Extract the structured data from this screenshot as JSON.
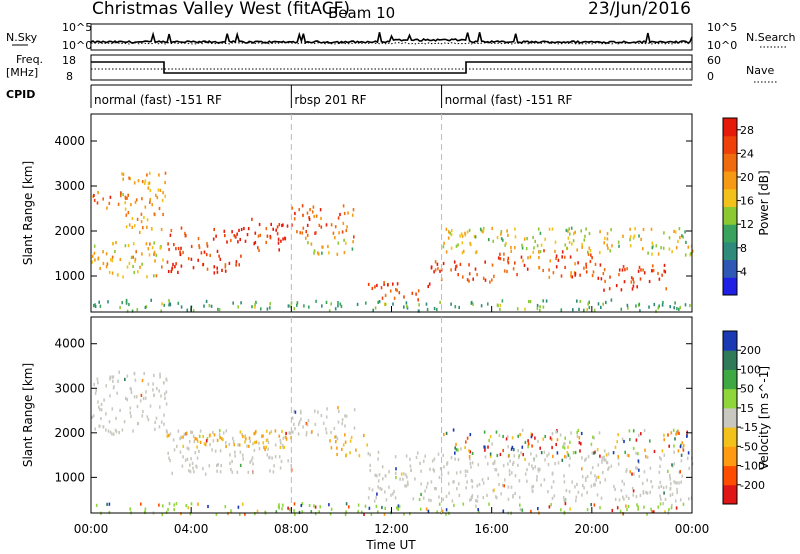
{
  "header": {
    "title": "Christmas Valley West (fitACF)",
    "beam": "Beam 10",
    "date": "23/Jun/2016"
  },
  "sky_panel": {
    "left_label": "N.Sky",
    "right_label": "N.Search",
    "left_ticks": [
      "10^5",
      "10^0"
    ],
    "right_ticks": [
      "10^5",
      "10^0"
    ]
  },
  "freq_panel": {
    "left_label_line1": "Freq.",
    "left_label_line2": "[MHz]",
    "right_label": "Nave",
    "left_ticks": [
      "18",
      "8"
    ],
    "right_ticks": [
      "60",
      "0"
    ]
  },
  "cpid_panel": {
    "label": "CPID",
    "segments": [
      {
        "start": 0,
        "end": 8,
        "label": "normal (fast) -151 RF"
      },
      {
        "start": 8,
        "end": 14,
        "label": "rbsp 201 RF"
      },
      {
        "start": 14,
        "end": 24,
        "label": "normal (fast) -151 RF"
      }
    ]
  },
  "colors": {
    "power": [
      "#1f1fe6",
      "#2f57b5",
      "#2e8a7a",
      "#39a35e",
      "#8cc832",
      "#f2c21a",
      "#f59a12",
      "#f06b0d",
      "#ee4008",
      "#e61a08"
    ],
    "velocity": [
      "#e01515",
      "#ff4d00",
      "#ff9a12",
      "#f2c21a",
      "#c8c8c0",
      "#8fd63a",
      "#3ea842",
      "#2f7a58",
      "#1a3ab3"
    ],
    "ground_scatter": "#c8c8c0"
  },
  "chart_data": [
    {
      "type": "heatmap",
      "title": "Power",
      "xlabel": "Time UT",
      "ylabel": "Slant Range [km]",
      "x_ticks": [
        "00:00",
        "04:00",
        "08:00",
        "12:00",
        "16:00",
        "20:00",
        "00:00"
      ],
      "xlim_hours": [
        0,
        24
      ],
      "y_ticks": [
        1000,
        2000,
        3000,
        4000
      ],
      "ylim": [
        200,
        4600
      ],
      "colorbar_label": "Power [dB]",
      "colorbar_ticks": [
        4,
        8,
        12,
        16,
        20,
        24,
        28
      ],
      "colorbar_range": [
        0,
        30
      ],
      "scatter_regions": [
        {
          "t0": 0.0,
          "t1": 1.2,
          "r0": 2500,
          "r1": 2900,
          "level": 0.8
        },
        {
          "t0": 1.2,
          "t1": 3.0,
          "r0": 2000,
          "r1": 3400,
          "level": 0.65
        },
        {
          "t0": 3.0,
          "t1": 6.0,
          "r0": 1100,
          "r1": 2100,
          "level": 0.95
        },
        {
          "t0": 6.0,
          "t1": 8.0,
          "r0": 1600,
          "r1": 2300,
          "level": 0.92
        },
        {
          "t0": 8.0,
          "t1": 10.5,
          "r0": 1900,
          "r1": 2600,
          "level": 0.85
        },
        {
          "t0": 8.5,
          "t1": 10.5,
          "r0": 1500,
          "r1": 1900,
          "level": 0.55
        },
        {
          "t0": 0.0,
          "t1": 3.0,
          "r0": 1000,
          "r1": 1800,
          "level": 0.6
        },
        {
          "t0": 11.0,
          "t1": 13.5,
          "r0": 500,
          "r1": 900,
          "level": 0.9
        },
        {
          "t0": 13.5,
          "t1": 16.0,
          "r0": 900,
          "r1": 1400,
          "level": 0.9
        },
        {
          "t0": 16.0,
          "t1": 20.0,
          "r0": 1000,
          "r1": 1600,
          "level": 0.85
        },
        {
          "t0": 20.0,
          "t1": 23.0,
          "r0": 700,
          "r1": 1300,
          "level": 0.92
        },
        {
          "t0": 14.0,
          "t1": 24.0,
          "r0": 1500,
          "r1": 2100,
          "level": 0.5
        },
        {
          "t0": 0.0,
          "t1": 24.0,
          "r0": 250,
          "r1": 500,
          "level": 0.35
        }
      ]
    },
    {
      "type": "heatmap",
      "title": "Velocity",
      "xlabel": "Time UT",
      "ylabel": "Slant Range [km]",
      "x_ticks": [
        "00:00",
        "04:00",
        "08:00",
        "12:00",
        "16:00",
        "20:00",
        "00:00"
      ],
      "xlim_hours": [
        0,
        24
      ],
      "y_ticks": [
        1000,
        2000,
        3000,
        4000
      ],
      "ylim": [
        200,
        4600
      ],
      "colorbar_label": "Velocity [m s^-1]",
      "colorbar_ticks": [
        200,
        100,
        50,
        15,
        -15,
        -50,
        -100,
        -200
      ],
      "colorbar_range": [
        -250,
        250
      ],
      "scatter_regions": [
        {
          "t0": 0.0,
          "t1": 3.0,
          "r0": 2000,
          "r1": 3400,
          "kind": "ground"
        },
        {
          "t0": 3.0,
          "t1": 8.0,
          "r0": 1100,
          "r1": 2100,
          "kind": "ground"
        },
        {
          "t0": 3.0,
          "t1": 8.0,
          "r0": 1700,
          "r1": 2100,
          "kind": "orange"
        },
        {
          "t0": 8.0,
          "t1": 10.5,
          "r0": 1900,
          "r1": 2600,
          "kind": "ground"
        },
        {
          "t0": 9.5,
          "t1": 11.0,
          "r0": 1500,
          "r1": 2000,
          "kind": "orange"
        },
        {
          "t0": 11.0,
          "t1": 24.0,
          "r0": 500,
          "r1": 1600,
          "kind": "ground"
        },
        {
          "t0": 14.0,
          "t1": 24.0,
          "r0": 1500,
          "r1": 2100,
          "kind": "mixed"
        },
        {
          "t0": 0.0,
          "t1": 24.0,
          "r0": 200,
          "r1": 450,
          "kind": "green"
        }
      ]
    }
  ]
}
